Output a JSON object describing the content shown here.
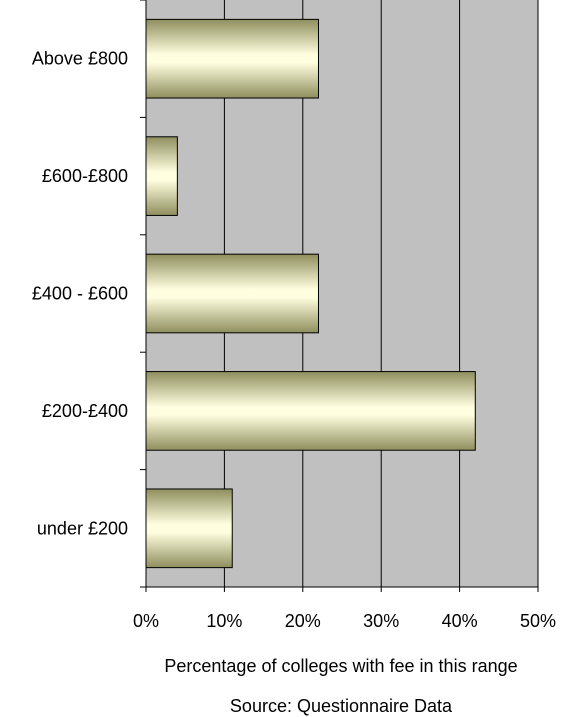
{
  "chart_data": {
    "type": "bar",
    "orientation": "horizontal",
    "categories": [
      "under £200",
      "£200-£400",
      "£400 - £600",
      "£600-£800",
      "Above £800"
    ],
    "values": [
      11,
      42,
      22,
      4,
      22
    ],
    "xlabel": "Percentage of colleges with fee in this range",
    "source": "Source: Questionnaire Data",
    "xlim": [
      0,
      50
    ],
    "x_ticks": [
      "0%",
      "10%",
      "20%",
      "30%",
      "40%",
      "50%"
    ],
    "grid": "vertical",
    "colors": {
      "plot_bg": "#c0c0c0",
      "bar_light": "#ffffdd",
      "bar_dark": "#8a8a5a",
      "bar_stroke": "#000000"
    }
  }
}
